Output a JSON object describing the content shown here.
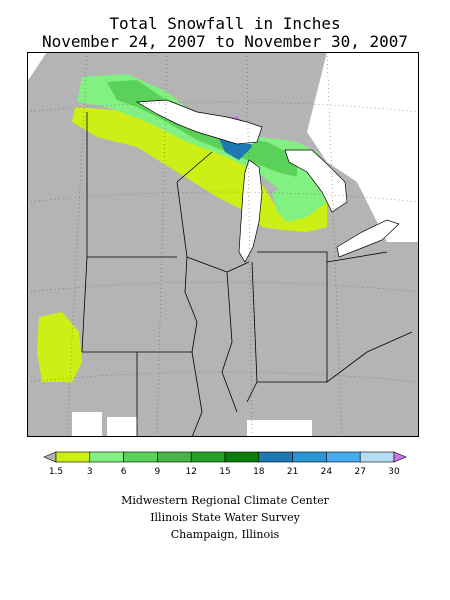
{
  "title": {
    "line1": "Total Snowfall in Inches",
    "line2": "November 24, 2007 to November 30, 2007"
  },
  "legend": {
    "ticks": [
      "1.5",
      "3",
      "6",
      "9",
      "12",
      "15",
      "18",
      "21",
      "24",
      "27",
      "30"
    ],
    "colors": [
      "#b3b3b3",
      "#ccf016",
      "#82f082",
      "#5ad25a",
      "#46b446",
      "#28a028",
      "#0a7d0a",
      "#1e78b4",
      "#2896d2",
      "#46aaf0",
      "#b4dcf5",
      "#c878e6"
    ]
  },
  "colors": {
    "land": "#b4b4b4",
    "border": "#000000",
    "grid": "#555555",
    "lake": "#ffffff"
  },
  "credits": {
    "line1": "Midwestern Regional Climate Center",
    "line2": "Illinois State Water Survey",
    "line3": "Champaign, Illinois"
  }
}
